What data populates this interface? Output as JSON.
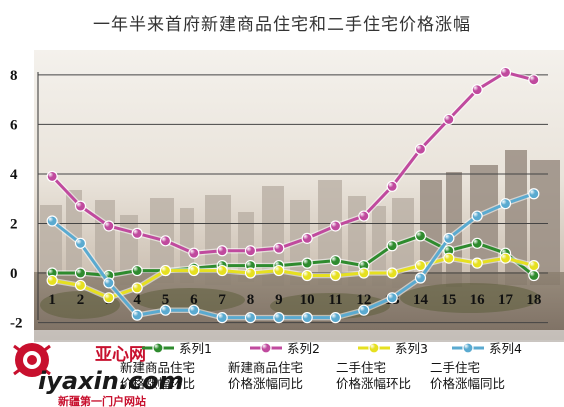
{
  "title": "一年半来首府新建商品住宅和二手住宅价格涨幅",
  "watermark": {
    "logo_cn": "亚心网",
    "logo_en": "iyaxin.com",
    "tagline": "新疆第一门户网站"
  },
  "chart_data": {
    "type": "line",
    "title": "一年半来首府新建商品住宅和二手住宅价格涨幅",
    "xlabel": "",
    "ylabel": "",
    "x": [
      1,
      2,
      3,
      4,
      5,
      6,
      7,
      8,
      9,
      10,
      11,
      12,
      13,
      14,
      15,
      16,
      17,
      18
    ],
    "xlim": [
      0.5,
      18.5
    ],
    "ylim": [
      -2.3,
      8.6
    ],
    "y_ticks": [
      -2,
      0,
      2,
      4,
      6,
      8
    ],
    "y_tick_labels": [
      "-2",
      "0",
      "2",
      "4",
      "6",
      "8"
    ],
    "grid": "horizontal",
    "legend_position": "bottom",
    "series": [
      {
        "name": "系列1",
        "desc": [
          "新建商品住宅",
          "价格涨幅环比"
        ],
        "color": "#2e8b2e",
        "values": [
          0.0,
          0.0,
          -0.1,
          0.1,
          0.1,
          0.2,
          0.3,
          0.3,
          0.3,
          0.4,
          0.5,
          0.3,
          1.1,
          1.5,
          0.9,
          1.2,
          0.8,
          -0.1
        ]
      },
      {
        "name": "系列2",
        "desc": [
          "新建商品住宅",
          "价格涨幅同比"
        ],
        "color": "#c04a9e",
        "values": [
          3.9,
          2.7,
          1.9,
          1.6,
          1.3,
          0.8,
          0.9,
          0.9,
          1.0,
          1.4,
          1.9,
          2.3,
          3.5,
          5.0,
          6.2,
          7.4,
          8.1,
          7.8
        ]
      },
      {
        "name": "系列3",
        "desc": [
          "二手住宅",
          "价格涨幅环比"
        ],
        "color": "#e6e020",
        "values": [
          -0.3,
          -0.5,
          -1.0,
          -0.6,
          0.1,
          0.1,
          0.1,
          0.0,
          0.1,
          -0.1,
          -0.1,
          0.0,
          0.0,
          0.3,
          0.6,
          0.4,
          0.6,
          0.3
        ]
      },
      {
        "name": "系列4",
        "desc": [
          "二手住宅",
          "价格涨幅同比"
        ],
        "color": "#5aaad0",
        "values": [
          2.1,
          1.2,
          -0.4,
          -1.7,
          -1.5,
          -1.5,
          -1.8,
          -1.8,
          -1.8,
          -1.8,
          -1.8,
          -1.5,
          -1.0,
          -0.2,
          1.4,
          2.3,
          2.8,
          3.2
        ]
      }
    ]
  }
}
